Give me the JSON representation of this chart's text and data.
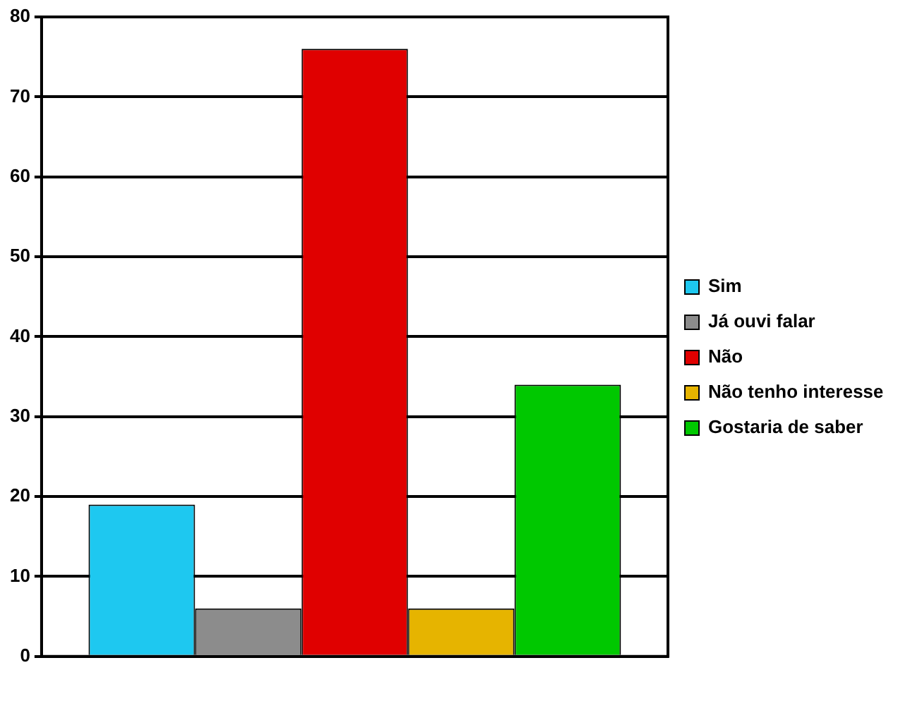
{
  "chart_data": {
    "type": "bar",
    "categories": [
      null
    ],
    "series": [
      {
        "name": "Sim",
        "color": "#1ec8f0",
        "values": [
          19
        ]
      },
      {
        "name": "Já ouvi falar",
        "color": "#8c8c8c",
        "values": [
          6
        ]
      },
      {
        "name": "Não",
        "color": "#e00000",
        "values": [
          76
        ]
      },
      {
        "name": "Não tenho interesse",
        "color": "#e6b400",
        "values": [
          6
        ]
      },
      {
        "name": "Gostaria de saber",
        "color": "#00c800",
        "values": [
          34
        ]
      }
    ],
    "ylim": [
      0,
      80
    ],
    "yticks": [
      0,
      10,
      20,
      30,
      40,
      50,
      60,
      70,
      80
    ],
    "grid": "y",
    "legend": "right"
  }
}
